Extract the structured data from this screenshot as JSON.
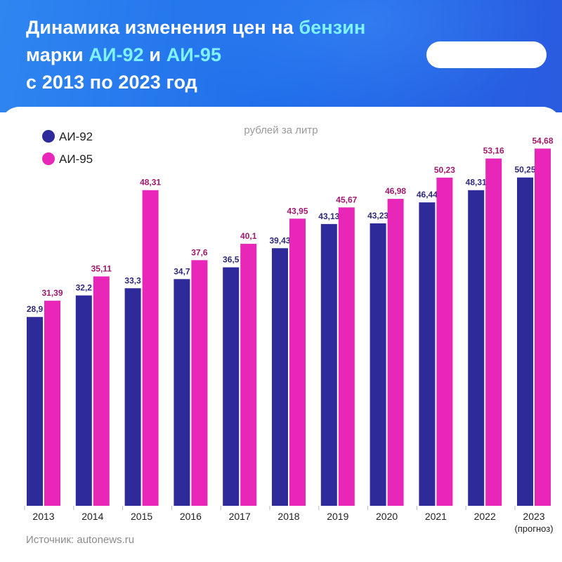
{
  "header": {
    "title_line1": "Динамика изменения цен на ",
    "title_highlight1": "бензин",
    "title_line2_start": "марки ",
    "title_highlight2": "АИ-92",
    "title_line2_mid": " и ",
    "title_highlight3": "АИ-95",
    "title_line3": "с 2013 по 2023 год"
  },
  "footer": {
    "source": "Источник: autonews.ru"
  },
  "colors": {
    "ai92": "#2e2a9a",
    "ai95": "#e826b8",
    "label92": "#2e2a7a",
    "label95": "#a0186e",
    "header_bg": "#1f6bea",
    "highlight": "#7ef3ff"
  },
  "chart_data": {
    "type": "bar",
    "unit_label": "рублей за литр",
    "categories": [
      "2013",
      "2014",
      "2015",
      "2016",
      "2017",
      "2018",
      "2019",
      "2020",
      "2021",
      "2022",
      "2023"
    ],
    "category_sublabels": [
      "",
      "",
      "",
      "",
      "",
      "",
      "",
      "",
      "",
      "",
      "(прогноз)"
    ],
    "series": [
      {
        "name": "АИ-92",
        "values": [
          28.9,
          32.2,
          33.3,
          34.7,
          36.5,
          39.43,
          43.13,
          43.23,
          46.44,
          48.31,
          50.25
        ],
        "labels": [
          "28,9",
          "32,2",
          "33,3",
          "34,7",
          "36,5",
          "39,43",
          "43,13",
          "43,23",
          "46,44",
          "48,31",
          "50,25"
        ]
      },
      {
        "name": "АИ-95",
        "values": [
          31.39,
          35.11,
          48.31,
          37.6,
          40.1,
          43.95,
          45.67,
          46.98,
          50.23,
          53.16,
          54.68
        ],
        "labels": [
          "31,39",
          "35,11",
          "48,31",
          "37,6",
          "40,1",
          "43,95",
          "45,67",
          "46,98",
          "50,23",
          "53,16",
          "54,68"
        ]
      }
    ],
    "ylim": [
      0,
      60
    ],
    "grid": false,
    "legend_position": "top-left"
  }
}
